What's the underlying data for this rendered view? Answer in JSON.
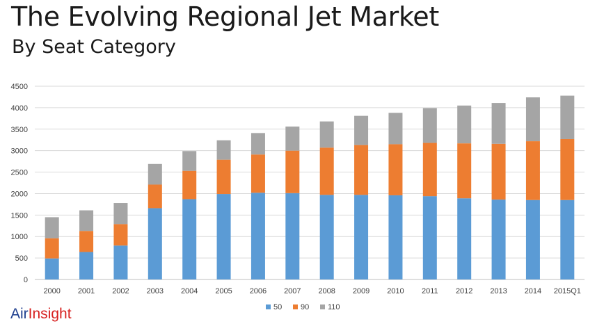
{
  "title": "The Evolving Regional Jet Market",
  "subtitle": "By Seat Category",
  "logo": {
    "part1": "Air",
    "part2": "Insight"
  },
  "colors": {
    "s50": "#5b9bd5",
    "s90": "#ed7d31",
    "s110": "#a5a5a5",
    "grid": "#d9d9d9"
  },
  "chart_data": {
    "type": "bar",
    "stacked": true,
    "categories": [
      "2000",
      "2001",
      "2002",
      "2003",
      "2004",
      "2005",
      "2006",
      "2007",
      "2008",
      "2009",
      "2010",
      "2011",
      "2012",
      "2013",
      "2014",
      "2015Q1"
    ],
    "series": [
      {
        "name": "50",
        "values": [
          490,
          640,
          790,
          1660,
          1870,
          1990,
          2020,
          2010,
          1970,
          1970,
          1960,
          1940,
          1890,
          1860,
          1850,
          1850
        ]
      },
      {
        "name": "90",
        "values": [
          470,
          490,
          500,
          550,
          660,
          800,
          890,
          990,
          1100,
          1160,
          1190,
          1240,
          1280,
          1300,
          1370,
          1420
        ]
      },
      {
        "name": "110",
        "values": [
          490,
          480,
          490,
          480,
          460,
          450,
          500,
          560,
          610,
          680,
          730,
          810,
          880,
          950,
          1020,
          1010
        ]
      }
    ],
    "yticks": [
      0,
      500,
      1000,
      1500,
      2000,
      2500,
      3000,
      3500,
      4000,
      4500
    ],
    "ylim": [
      0,
      4500
    ],
    "grid": true,
    "legend_position": "bottom"
  }
}
